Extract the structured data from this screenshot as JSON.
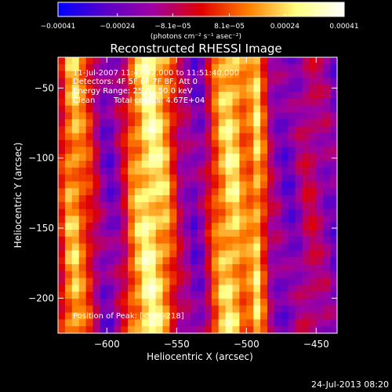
{
  "chart_data": {
    "type": "heatmap",
    "title": "Reconstructed RHESSI Image",
    "xlabel": "Heliocentric X (arcsec)",
    "ylabel": "Heliocentric Y (arcsec)",
    "xlim": [
      -635,
      -435
    ],
    "ylim": [
      -225,
      -28
    ],
    "xticks": [
      -600,
      -550,
      -500,
      -450
    ],
    "yticks": [
      -50,
      -100,
      -150,
      -200
    ],
    "xtick_labels": [
      "−600",
      "−550",
      "−500",
      "−450"
    ],
    "ytick_labels": [
      "−50",
      "−100",
      "−150",
      "−200"
    ],
    "colorbar": {
      "min": -0.00041,
      "max": 0.00041,
      "ticks": [
        -0.00041,
        -0.00024,
        -8.1e-05,
        8.1e-05,
        0.00024,
        0.00041
      ],
      "tick_labels": [
        "−0.00041",
        "−0.00024",
        "−8.1e−05",
        "8.1e−05",
        "0.00024",
        "0.00041"
      ],
      "unit_label": "(photons cm⁻² s⁻¹ asec⁻²)",
      "colormap": [
        "#0000ff",
        "#5a00c8",
        "#a000a0",
        "#e00000",
        "#ff8000",
        "#ffff80",
        "#ffffff"
      ]
    },
    "band_profile": [
      {
        "x": -635,
        "v": -5e-05
      },
      {
        "x": -625,
        "v": 0.00022
      },
      {
        "x": -612,
        "v": 2e-05
      },
      {
        "x": -600,
        "v": -0.00024
      },
      {
        "x": -590,
        "v": -0.00012
      },
      {
        "x": -583,
        "v": 0.0001
      },
      {
        "x": -570,
        "v": 0.0003
      },
      {
        "x": -558,
        "v": 0.00018
      },
      {
        "x": -548,
        "v": -8e-05
      },
      {
        "x": -535,
        "v": -0.00024
      },
      {
        "x": -520,
        "v": 0.00015
      },
      {
        "x": -510,
        "v": 0.00026
      },
      {
        "x": -500,
        "v": 8e-05
      },
      {
        "x": -492,
        "v": 0.00022
      },
      {
        "x": -482,
        "v": -0.00012
      },
      {
        "x": -470,
        "v": -0.00024
      },
      {
        "x": -455,
        "v": -6e-05
      },
      {
        "x": -435,
        "v": -0.00022
      }
    ],
    "annotations": {
      "time_range": "11-Jul-2007 11:47:42.000 to 11:51:40.000",
      "detectors": "Detectors: 4F 5F 6F 7F 8F, Att 0",
      "energy_range": "Energy Range: 25.0 - 50.0 keV",
      "algorithm": "Clean",
      "total_counts": "Total counts: 4.67E+04",
      "peak_position": "Position of Peak: [-575,-218]"
    }
  },
  "footer": {
    "timestamp": "24-Jul-2013 08:20"
  }
}
